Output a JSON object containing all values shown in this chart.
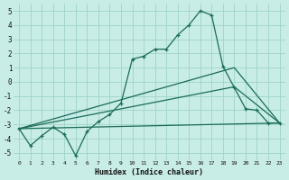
{
  "xlabel": "Humidex (Indice chaleur)",
  "background_color": "#c8ece6",
  "grid_color": "#9dd4cc",
  "line_color": "#1a6b5a",
  "xlim": [
    -0.5,
    23.5
  ],
  "ylim": [
    -5.5,
    5.5
  ],
  "xticks": [
    0,
    1,
    2,
    3,
    4,
    5,
    6,
    7,
    8,
    9,
    10,
    11,
    12,
    13,
    14,
    15,
    16,
    17,
    18,
    19,
    20,
    21,
    22,
    23
  ],
  "yticks": [
    -5,
    -4,
    -3,
    -2,
    -1,
    0,
    1,
    2,
    3,
    4,
    5
  ],
  "line1_x": [
    0,
    1,
    2,
    3,
    4,
    5,
    6,
    7,
    8,
    9,
    10,
    11,
    12,
    13,
    14,
    15,
    16,
    17,
    18,
    19,
    20,
    21,
    22,
    23
  ],
  "line1_y": [
    -3.3,
    -4.5,
    -3.8,
    -3.2,
    -3.7,
    -5.2,
    -3.5,
    -2.8,
    -2.3,
    -1.5,
    1.6,
    1.8,
    2.3,
    2.3,
    3.3,
    4.0,
    5.0,
    4.7,
    1.1,
    -0.4,
    -1.9,
    -2.0,
    -2.9,
    -2.9
  ],
  "line2_x": [
    0,
    23
  ],
  "line2_y": [
    -3.3,
    -2.9
  ],
  "line3_x": [
    0,
    19,
    23
  ],
  "line3_y": [
    -3.3,
    1.0,
    -2.9
  ],
  "line4_x": [
    0,
    19,
    23
  ],
  "line4_y": [
    -3.3,
    -0.35,
    -2.9
  ]
}
